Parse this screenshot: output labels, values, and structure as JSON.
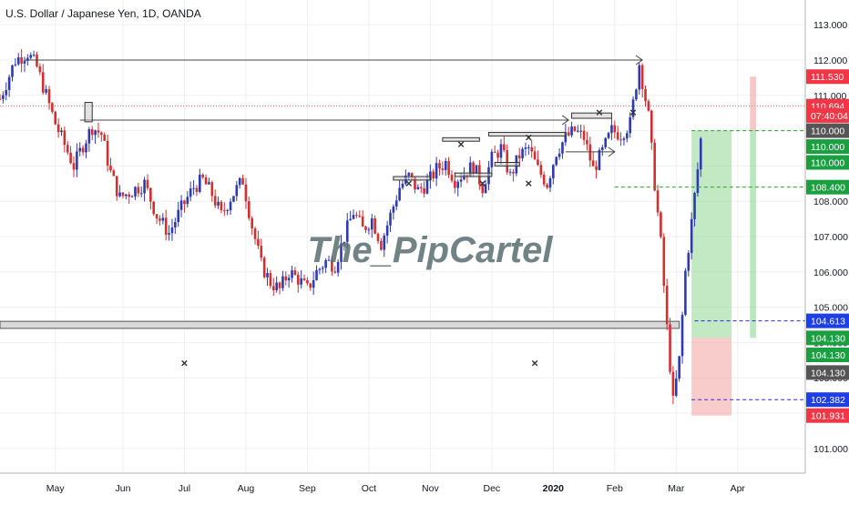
{
  "chart_data": {
    "type": "candlestick",
    "title": "U.S. Dollar / Japanese Yen, 1D, OANDA",
    "watermark": "The_PipCartel",
    "x_ticks": [
      "May",
      "Jun",
      "Jul",
      "Aug",
      "Sep",
      "Oct",
      "Nov",
      "Dec",
      "2020",
      "Feb",
      "Mar",
      "Apr"
    ],
    "x_tick_positions": [
      0.9,
      2.0,
      3.0,
      4.0,
      5.0,
      6.0,
      7.0,
      8.0,
      9.0,
      10.0,
      11.0,
      12.0
    ],
    "y_ticks": [
      "113.000",
      "112.000",
      "111.000",
      "110.000",
      "109.000",
      "108.000",
      "107.000",
      "106.000",
      "105.000",
      "104.000",
      "103.000",
      "102.000",
      "101.000"
    ],
    "y_tick_values": [
      113,
      112,
      111,
      110,
      109,
      108,
      107,
      106,
      105,
      104,
      103,
      102,
      101
    ],
    "ylim": [
      100.3,
      113.7
    ],
    "xlim": [
      0,
      13.1
    ],
    "colors": {
      "up": "#2e3ab5",
      "down": "#d32f2f",
      "horizontal_zone": "#d9d9d9",
      "arrow": "#444444",
      "profit_zone": "#8fd694",
      "loss_zone": "#f4a3a3",
      "dotted_red": "#e06060",
      "dashed_green": "#26a626",
      "dashed_blue": "#2b2bd6",
      "watermark": "#5a6e70"
    },
    "price_path": [
      [
        0.0,
        110.9
      ],
      [
        0.25,
        112.0
      ],
      [
        0.45,
        112.2
      ],
      [
        0.6,
        111.8
      ],
      [
        0.75,
        111.0
      ],
      [
        0.9,
        110.2
      ],
      [
        1.05,
        109.6
      ],
      [
        1.2,
        109.0
      ],
      [
        1.35,
        109.6
      ],
      [
        1.5,
        110.1
      ],
      [
        1.65,
        109.9
      ],
      [
        1.8,
        108.8
      ],
      [
        1.95,
        108.1
      ],
      [
        2.15,
        108.3
      ],
      [
        2.35,
        108.5
      ],
      [
        2.55,
        107.6
      ],
      [
        2.75,
        107.1
      ],
      [
        2.95,
        107.8
      ],
      [
        3.15,
        108.4
      ],
      [
        3.3,
        108.6
      ],
      [
        3.45,
        108.2
      ],
      [
        3.6,
        107.6
      ],
      [
        3.75,
        108.1
      ],
      [
        3.95,
        108.6
      ],
      [
        4.1,
        107.3
      ],
      [
        4.25,
        106.2
      ],
      [
        4.4,
        105.7
      ],
      [
        4.55,
        105.5
      ],
      [
        4.7,
        106.0
      ],
      [
        4.85,
        105.8
      ],
      [
        5.0,
        105.5
      ],
      [
        5.15,
        106.0
      ],
      [
        5.3,
        106.3
      ],
      [
        5.45,
        106.2
      ],
      [
        5.6,
        107.0
      ],
      [
        5.75,
        107.7
      ],
      [
        5.9,
        107.2
      ],
      [
        6.05,
        107.5
      ],
      [
        6.2,
        106.8
      ],
      [
        6.35,
        107.6
      ],
      [
        6.5,
        108.4
      ],
      [
        6.65,
        108.7
      ],
      [
        6.8,
        108.3
      ],
      [
        6.95,
        108.5
      ],
      [
        7.1,
        108.9
      ],
      [
        7.25,
        109.1
      ],
      [
        7.4,
        108.6
      ],
      [
        7.55,
        108.8
      ],
      [
        7.7,
        109.0
      ],
      [
        7.85,
        108.4
      ],
      [
        8.0,
        109.2
      ],
      [
        8.15,
        109.5
      ],
      [
        8.3,
        108.7
      ],
      [
        8.45,
        109.3
      ],
      [
        8.6,
        109.5
      ],
      [
        8.75,
        108.9
      ],
      [
        8.9,
        108.5
      ],
      [
        9.05,
        109.4
      ],
      [
        9.2,
        109.8
      ],
      [
        9.35,
        110.0
      ],
      [
        9.5,
        109.8
      ],
      [
        9.65,
        108.9
      ],
      [
        9.8,
        109.4
      ],
      [
        9.95,
        110.0
      ],
      [
        10.1,
        109.9
      ],
      [
        10.25,
        110.2
      ],
      [
        10.4,
        111.9
      ],
      [
        10.55,
        110.4
      ],
      [
        10.65,
        108.5
      ],
      [
        10.75,
        106.8
      ],
      [
        10.85,
        104.4
      ],
      [
        10.95,
        102.3
      ],
      [
        11.05,
        103.5
      ],
      [
        11.15,
        106.0
      ],
      [
        11.25,
        107.4
      ],
      [
        11.35,
        108.9
      ],
      [
        11.45,
        110.6
      ]
    ],
    "horizontal_zone": {
      "x0": 0.0,
      "x1": 11.05,
      "y0": 104.4,
      "y1": 104.6
    },
    "dotted_line_price": 110.7,
    "arrows": [
      {
        "x0": 0.4,
        "y0": 112.0,
        "x1": 10.45,
        "y1": 112.0
      },
      {
        "x0": 1.3,
        "y0": 110.3,
        "x1": 9.25,
        "y1": 110.3
      },
      {
        "x0": 9.2,
        "y0": 109.4,
        "x1": 10.0,
        "y1": 109.4
      }
    ],
    "small_boxes": [
      {
        "x0": 1.38,
        "y0": 110.25,
        "x1": 1.5,
        "y1": 110.8
      },
      {
        "x0": 6.4,
        "y0": 108.6,
        "x1": 7.0,
        "y1": 108.7
      },
      {
        "x0": 7.2,
        "y0": 109.7,
        "x1": 7.8,
        "y1": 109.8
      },
      {
        "x0": 7.4,
        "y0": 108.7,
        "x1": 8.0,
        "y1": 108.8
      },
      {
        "x0": 7.95,
        "y0": 109.85,
        "x1": 9.2,
        "y1": 109.95
      },
      {
        "x0": 8.05,
        "y0": 109.0,
        "x1": 8.45,
        "y1": 109.1
      },
      {
        "x0": 9.3,
        "y0": 110.35,
        "x1": 9.95,
        "y1": 110.5
      }
    ],
    "x_markers": [
      [
        3.0,
        103.4
      ],
      [
        6.65,
        108.5
      ],
      [
        7.5,
        109.6
      ],
      [
        7.85,
        108.5
      ],
      [
        8.6,
        109.8
      ],
      [
        8.6,
        108.5
      ],
      [
        8.7,
        103.4
      ],
      [
        9.75,
        110.5
      ],
      [
        10.3,
        110.5
      ]
    ],
    "position_tool": {
      "x0": 11.25,
      "x1": 11.9,
      "entry": 104.13,
      "target": 110.0,
      "stop": 101.931,
      "right_profit_bar": {
        "x0": 12.2,
        "x1": 12.3,
        "y0": 104.13,
        "y1": 111.53
      }
    },
    "dashed_levels": [
      {
        "y": 110.0,
        "kind": "green",
        "x0": 11.25
      },
      {
        "y": 108.4,
        "kind": "green",
        "x0": 10.0
      },
      {
        "y": 104.613,
        "kind": "blue",
        "x0": 11.3
      },
      {
        "y": 102.382,
        "kind": "blue",
        "x0": 11.25
      }
    ],
    "price_labels": [
      {
        "text": "111.530",
        "y": 111.53,
        "bg": "#f23645"
      },
      {
        "text": "110.694",
        "y": 110.694,
        "bg": "#f23645"
      },
      {
        "text": "07:40:04",
        "y": 110.43,
        "bg": "#f23645"
      },
      {
        "text": "110.000",
        "y": 110.0,
        "bg": "#555555"
      },
      {
        "text": "110.000",
        "y": 109.55,
        "bg": "#1aa040"
      },
      {
        "text": "110.000",
        "y": 109.1,
        "bg": "#1aa040"
      },
      {
        "text": "108.400",
        "y": 108.4,
        "bg": "#1aa040"
      },
      {
        "text": "104.613",
        "y": 104.613,
        "bg": "#1e3fe6"
      },
      {
        "text": "104.130",
        "y": 104.13,
        "bg": "#1aa040"
      },
      {
        "text": "104.130",
        "y": 103.65,
        "bg": "#1aa040"
      },
      {
        "text": "104.130",
        "y": 103.15,
        "bg": "#555555"
      },
      {
        "text": "102.382",
        "y": 102.382,
        "bg": "#1e3fe6"
      },
      {
        "text": "101.931",
        "y": 101.931,
        "bg": "#f23645"
      }
    ]
  }
}
